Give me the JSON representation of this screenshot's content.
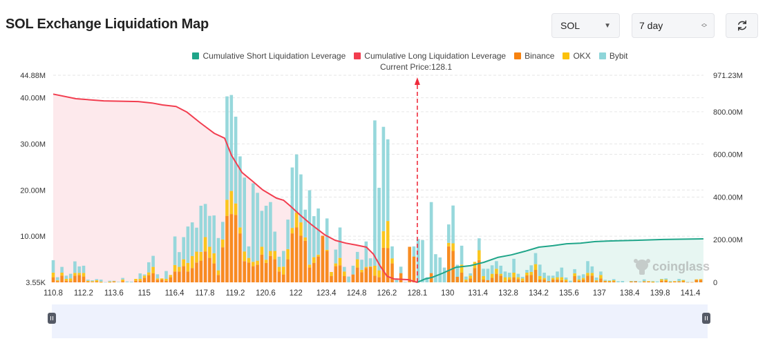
{
  "header": {
    "title": "SOL Exchange Liquidation Map",
    "coin_select": "SOL",
    "period_select": "7 day",
    "refresh_icon": "refresh-icon"
  },
  "legend": [
    {
      "label": "Cumulative Short Liquidation Leverage",
      "color": "#1fa589"
    },
    {
      "label": "Cumulative Long Liquidation Leverage",
      "color": "#f23d4f"
    },
    {
      "label": "Binance",
      "color": "#f7820f"
    },
    {
      "label": "OKX",
      "color": "#fbc10b"
    },
    {
      "label": "Bybit",
      "color": "#8ed5d9"
    }
  ],
  "watermark": "coinglass",
  "chart_data": {
    "type": "bar",
    "current_price_label": "Current Price:128.1",
    "current_price": 128.1,
    "x_tick_labels": [
      "110.8",
      "112.2",
      "113.6",
      "115",
      "116.4",
      "117.8",
      "119.2",
      "120.6",
      "122",
      "123.4",
      "124.8",
      "126.2",
      "128.1",
      "130",
      "131.4",
      "132.8",
      "134.2",
      "135.6",
      "137",
      "138.4",
      "139.8",
      "141.4"
    ],
    "y_left": {
      "ticks": [
        "3.55K",
        "10.00M",
        "20.00M",
        "30.00M",
        "40.00M",
        "44.88M"
      ],
      "tick_values": [
        0,
        10,
        20,
        30,
        40,
        44.88
      ],
      "range": [
        0,
        44.88
      ],
      "unit": "M"
    },
    "y_right": {
      "ticks": [
        "0",
        "200.00M",
        "400.00M",
        "600.00M",
        "800.00M",
        "971.23M"
      ],
      "tick_values": [
        0,
        200,
        400,
        600,
        800,
        971.23
      ],
      "range": [
        0,
        971.23
      ],
      "unit": "M"
    },
    "grid": true,
    "legend_position": "top",
    "bar_series": [
      {
        "name": "Binance",
        "color": "#f7820f",
        "values": [
          1.1,
          0.25,
          1.45,
          0.35,
          0.25,
          1.45,
          1.55,
          1.25,
          0.15,
          0.1,
          0.15,
          0.05,
          0,
          0.05,
          0.15,
          0,
          0.25,
          0,
          0,
          0.35,
          0.35,
          0.95,
          1.55,
          1.95,
          0.55,
          0.6,
          0.35,
          1.1,
          2.35,
          2.35,
          3.5,
          2.35,
          3.1,
          4.3,
          4.7,
          6.7,
          5.3,
          4.1,
          1.6,
          7.6,
          14.4,
          14.8,
          14.6,
          10.6,
          4.6,
          4.3,
          3.5,
          3.8,
          6.0,
          4.2,
          5.7,
          5.0,
          2.35,
          1.7,
          5.0,
          10.6,
          11.9,
          10.1,
          9.0,
          3.2,
          4.2,
          5.6,
          10.1,
          6.8,
          1.35,
          3.5,
          3.7,
          1.35,
          0,
          1.7,
          3.2,
          2.2,
          3.1,
          3.3,
          1.45,
          1.1,
          7.5,
          7.4,
          4.1,
          0,
          2.0,
          0,
          7.7,
          5.6,
          0,
          0,
          0,
          2.0,
          0,
          0,
          0,
          7.8,
          6.8,
          1.2,
          2.1,
          0.25,
          0.85,
          3.1,
          4.8,
          0.6,
          0.5,
          1.0,
          1.85,
          1.45,
          0.25,
          0.6,
          1.1,
          0.7,
          0.35,
          1.5,
          1.6,
          2.7,
          0.6,
          0.6,
          0.25,
          0.6,
          0.6,
          0.45,
          0.25,
          0,
          1.35,
          0.35,
          0.6,
          1.45,
          1.45,
          0.25,
          0.85,
          0.25,
          0.15,
          0.25,
          0,
          0,
          0,
          0.15,
          0.25,
          0,
          0.15,
          0.15,
          0.05,
          0,
          0.35,
          0.35,
          0.05,
          0.15,
          0.15,
          0.25,
          0.05,
          0.05,
          0.55,
          0.55
        ]
      },
      {
        "name": "OKX",
        "color": "#fbc10b",
        "values": [
          1.0,
          0.2,
          0.65,
          0.4,
          0.6,
          0.6,
          0.5,
          0.8,
          0.2,
          0.15,
          0.3,
          0.1,
          0,
          0.1,
          0.1,
          0,
          0.35,
          0,
          0,
          0.4,
          0.4,
          0.5,
          0.6,
          1.4,
          0.3,
          0.25,
          0.4,
          0.5,
          1.4,
          1.0,
          1.5,
          1.85,
          2.6,
          2.35,
          1.9,
          3.1,
          2.4,
          2.2,
          1.0,
          1.7,
          3.5,
          5.0,
          2.5,
          1.3,
          2.1,
          1.0,
          0.95,
          0.9,
          1.7,
          0.7,
          1.1,
          1.8,
          1.0,
          1.7,
          2.2,
          1.2,
          3.2,
          2.9,
          0.75,
          0.65,
          1.25,
          0.4,
          0,
          0.25,
          0.9,
          0.6,
          1.6,
          1.0,
          0,
          0,
          1.8,
          0.5,
          0.25,
          0.15,
          2.15,
          1.5,
          3.6,
          5.9,
          1.1,
          0,
          0,
          0,
          0,
          0,
          0,
          0,
          0,
          0,
          0,
          0,
          0,
          0.75,
          1.65,
          0,
          1.75,
          0.35,
          0.6,
          1.35,
          2.15,
          0.75,
          0,
          0.85,
          1.1,
          0.4,
          0.85,
          0.5,
          1.0,
          0.4,
          0.5,
          0.6,
          0.65,
          1.25,
          0.75,
          0.35,
          0,
          0.35,
          0.5,
          0.65,
          0.35,
          0,
          0.6,
          0.25,
          0.35,
          0.6,
          0.6,
          0.2,
          0.75,
          0.1,
          0.15,
          0.2,
          0,
          0,
          0,
          0.1,
          0,
          0,
          0.1,
          0.1,
          0.15,
          0,
          0.35,
          0.25,
          0.1,
          0.1,
          0.1,
          0.25,
          0,
          0,
          0.1,
          0.15
        ]
      },
      {
        "name": "Bybit",
        "color": "#8ed5d9",
        "values": [
          2.7,
          0.65,
          1.25,
          0.7,
          1.0,
          2.5,
          1.4,
          1.55,
          0.25,
          0.2,
          0.25,
          0.45,
          0.05,
          0.2,
          0.1,
          0.1,
          0.35,
          0.2,
          0.15,
          0,
          1.2,
          0.25,
          2.2,
          2.4,
          0.9,
          0,
          1.7,
          0,
          6.2,
          3.2,
          4.8,
          7.9,
          7.3,
          5.2,
          10,
          7.2,
          6.7,
          8.2,
          7.0,
          3.8,
          22.4,
          20.8,
          18.8,
          15.4,
          16.0,
          2.5,
          17.0,
          14.7,
          7.8,
          11.7,
          10.6,
          4.2,
          2.2,
          3.4,
          6.4,
          13.1,
          12.6,
          10.4,
          6.0,
          16.1,
          8.9,
          10.0,
          0,
          6.8,
          0,
          3.0,
          6.6,
          1.0,
          1.25,
          1.9,
          1.6,
          2.2,
          5.5,
          1.75,
          31.5,
          17.9,
          22.6,
          17.7,
          2.6,
          0.85,
          1.4,
          0.05,
          0,
          2.2,
          9.4,
          9.15,
          1.1,
          15.4,
          6.1,
          5.4,
          3.2,
          4.0,
          8.2,
          2.6,
          4.1,
          0.65,
          0.5,
          0,
          2.6,
          1.6,
          2.45,
          1.85,
          1.65,
          1.75,
          1.25,
          1.0,
          3.0,
          0.75,
          0.35,
          0.6,
          1.45,
          2.4,
          2.5,
          1.15,
          1.2,
          0.5,
          1.25,
          2.1,
          0.45,
          0.35,
          0.9,
          0.85,
          0.8,
          2.55,
          1.4,
          0.6,
          0.75,
          0.2,
          0.15,
          0.25,
          0.25,
          0.3,
          0,
          0.05,
          0.05,
          0.2,
          0.4,
          0,
          0.1,
          0.2,
          0.05,
          0.25,
          0.15,
          0,
          0.5,
          0.05,
          0.05,
          0,
          0
        ]
      }
    ],
    "line_series": [
      {
        "name": "Cumulative Long Liquidation Leverage",
        "color": "#f23d4f",
        "fill": "#fde9ec",
        "axis": "right",
        "points": [
          [
            110.8,
            883
          ],
          [
            111.85,
            861
          ],
          [
            113.13,
            851
          ],
          [
            114.72,
            848
          ],
          [
            115.36,
            841
          ],
          [
            115.84,
            832
          ],
          [
            116.47,
            825
          ],
          [
            116.96,
            799
          ],
          [
            117.59,
            748
          ],
          [
            118.23,
            699
          ],
          [
            118.71,
            676
          ],
          [
            119.03,
            595
          ],
          [
            119.51,
            515
          ],
          [
            119.98,
            476
          ],
          [
            120.46,
            434
          ],
          [
            121.1,
            395
          ],
          [
            121.43,
            385
          ],
          [
            121.73,
            359
          ],
          [
            122.15,
            320
          ],
          [
            122.7,
            272
          ],
          [
            123.33,
            223
          ],
          [
            123.81,
            197
          ],
          [
            124.3,
            184
          ],
          [
            124.77,
            175
          ],
          [
            125.25,
            165
          ],
          [
            125.57,
            133
          ],
          [
            125.88,
            78
          ],
          [
            126.2,
            29
          ],
          [
            126.64,
            16
          ],
          [
            127.51,
            13
          ],
          [
            128.1,
            0
          ]
        ]
      },
      {
        "name": "Cumulative Short Liquidation Leverage",
        "color": "#1fa589",
        "fill": "#e7f6f2",
        "axis": "right",
        "points": [
          [
            128.1,
            0
          ],
          [
            128.59,
            16
          ],
          [
            129.01,
            23
          ],
          [
            129.66,
            42
          ],
          [
            130.39,
            71
          ],
          [
            131.04,
            78
          ],
          [
            131.67,
            94
          ],
          [
            132.31,
            117
          ],
          [
            132.94,
            129
          ],
          [
            133.58,
            146
          ],
          [
            134.21,
            165
          ],
          [
            134.86,
            172
          ],
          [
            135.49,
            181
          ],
          [
            136.13,
            184
          ],
          [
            136.78,
            191
          ],
          [
            137.41,
            194
          ],
          [
            138.68,
            197
          ],
          [
            139.98,
            201
          ],
          [
            142.09,
            204
          ]
        ]
      }
    ]
  }
}
